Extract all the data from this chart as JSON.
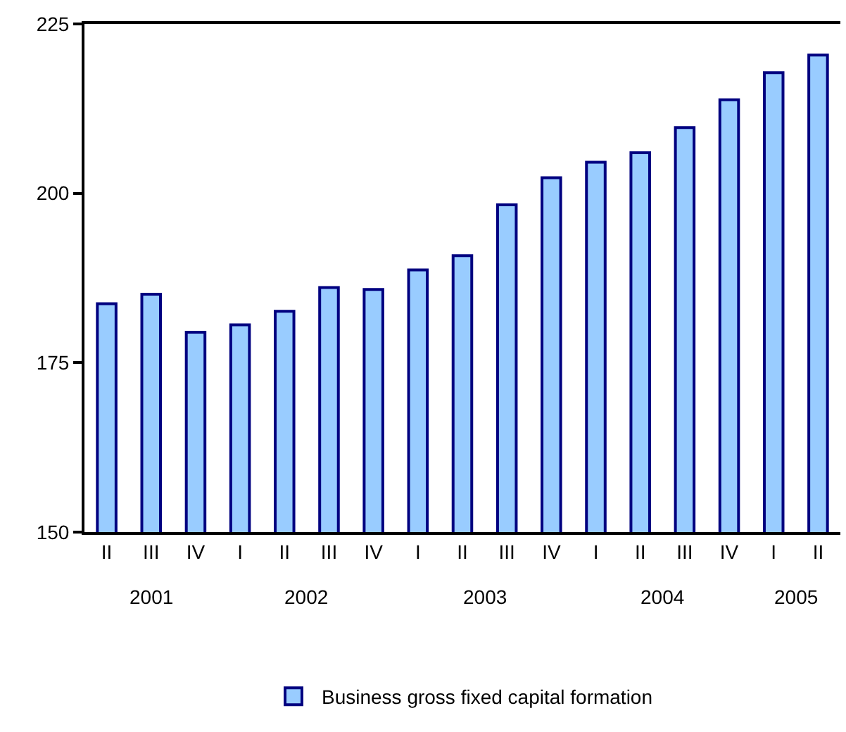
{
  "chart_data": {
    "type": "bar",
    "categories": [
      "II",
      "III",
      "IV",
      "I",
      "II",
      "III",
      "IV",
      "I",
      "II",
      "III",
      "IV",
      "I",
      "II",
      "III",
      "IV",
      "I",
      "II"
    ],
    "series": [
      {
        "name": "Business gross fixed capital formation",
        "color": "#99ccff",
        "values": [
          183.7,
          185.1,
          179.5,
          180.6,
          182.6,
          186.1,
          185.8,
          188.7,
          190.8,
          198.3,
          202.3,
          204.6,
          206.0,
          209.7,
          213.8,
          217.8,
          220.4
        ]
      }
    ],
    "ylim": [
      150,
      225
    ],
    "yticks": [
      150,
      175,
      200,
      225
    ],
    "annotations": [
      "2001",
      "2002",
      "2003",
      "2004",
      "2005"
    ],
    "legend": "bottom"
  }
}
